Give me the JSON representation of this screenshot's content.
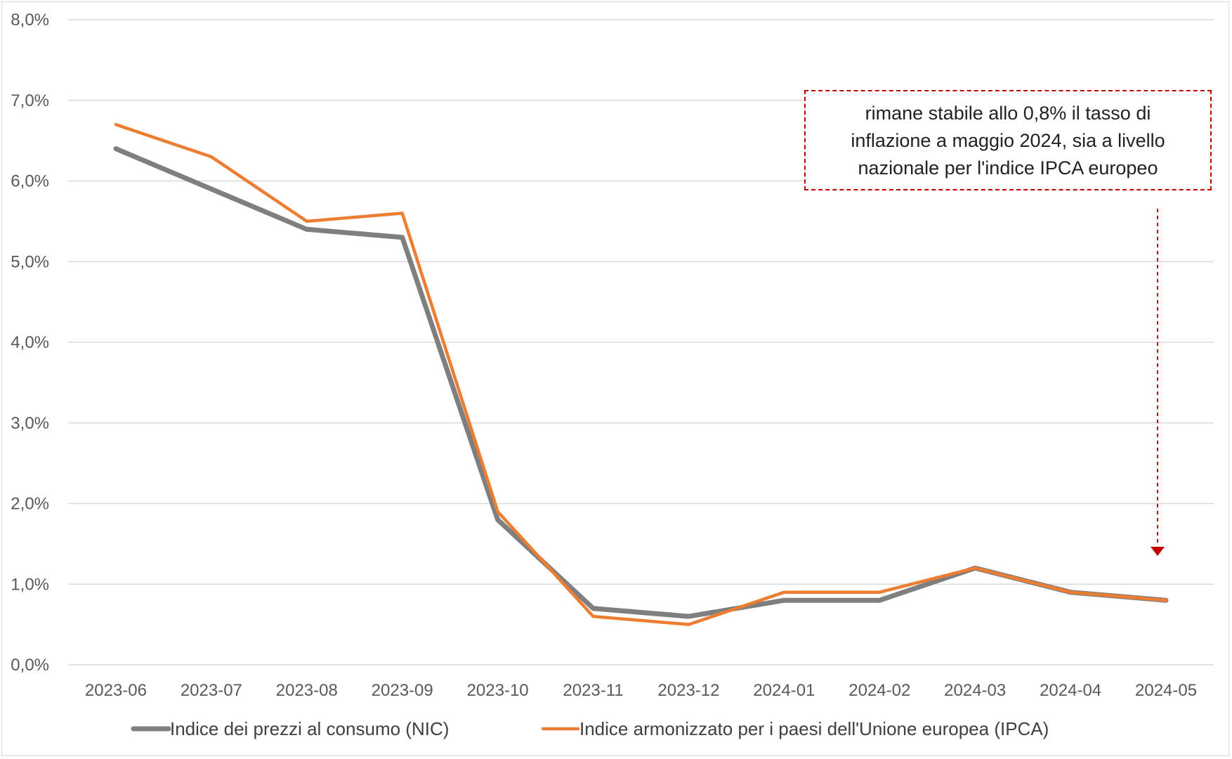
{
  "chart_data": {
    "type": "line",
    "categories": [
      "2023-06",
      "2023-07",
      "2023-08",
      "2023-09",
      "2023-10",
      "2023-11",
      "2023-12",
      "2024-01",
      "2024-02",
      "2024-03",
      "2024-04",
      "2024-05"
    ],
    "series": [
      {
        "name": "Indice  dei prezzi al consumo (NIC)",
        "color": "#7f7f7f",
        "values": [
          6.4,
          5.9,
          5.4,
          5.3,
          1.8,
          0.7,
          0.6,
          0.8,
          0.8,
          1.2,
          0.9,
          0.8
        ]
      },
      {
        "name": "Indice  armonizzato per i paesi dell'Unione europea (IPCA)",
        "color": "#ed7d31",
        "values": [
          6.7,
          6.3,
          5.5,
          5.6,
          1.9,
          0.6,
          0.5,
          0.9,
          0.9,
          1.2,
          0.9,
          0.8
        ]
      }
    ],
    "yticks": [
      "0,0%",
      "1,0%",
      "2,0%",
      "3,0%",
      "4,0%",
      "5,0%",
      "6,0%",
      "7,0%",
      "8,0%"
    ],
    "ylim": [
      0,
      8
    ],
    "grid": true,
    "legend": "bottom",
    "annotation": {
      "lines": [
        "rimane stabile allo 0,8% il tasso di",
        "inflazione a maggio 2024, sia a livello",
        "nazionale  per l'indice IPCA europeo"
      ],
      "color": "#c00000",
      "points_to": "2024-05"
    },
    "title": "",
    "xlabel": "",
    "ylabel": ""
  }
}
